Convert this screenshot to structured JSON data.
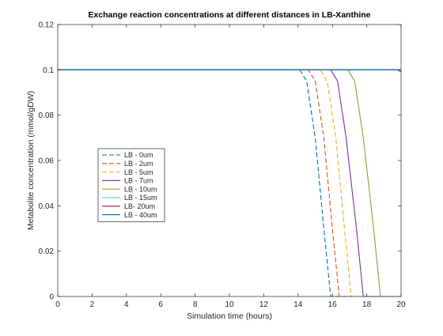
{
  "chart_data": {
    "type": "line",
    "title": "Exchange reaction concentrations at different distances in LB-Xanthine",
    "xlabel": "Simulation time (hours)",
    "ylabel": "Metabolite concentration (mmol/gDW)",
    "xlim": [
      0,
      20
    ],
    "ylim": [
      0,
      0.12
    ],
    "xticks": [
      0,
      2,
      4,
      6,
      8,
      10,
      12,
      14,
      16,
      18,
      20
    ],
    "yticks": [
      0,
      0.02,
      0.04,
      0.06,
      0.08,
      0.1,
      0.12
    ],
    "xtick_labels": [
      "0",
      "2",
      "4",
      "6",
      "8",
      "10",
      "12",
      "14",
      "16",
      "18",
      "20"
    ],
    "ytick_labels": [
      "0",
      "0.02",
      "0.04",
      "0.06",
      "0.08",
      "0.1",
      "0.12"
    ],
    "grid": false,
    "legend_position": "middle-left",
    "series": [
      {
        "name": "LB - 0um",
        "color": "#0072BD",
        "dash": "dashed",
        "x": [
          0,
          14.1,
          14.5,
          15.0,
          15.5,
          15.9,
          20
        ],
        "y": [
          0.1,
          0.1,
          0.095,
          0.07,
          0.03,
          0,
          0
        ]
      },
      {
        "name": "LB - 2um",
        "color": "#D95319",
        "dash": "dashed",
        "x": [
          0,
          14.6,
          15.0,
          15.5,
          16.0,
          16.4,
          20
        ],
        "y": [
          0.1,
          0.1,
          0.095,
          0.07,
          0.03,
          0,
          0
        ]
      },
      {
        "name": "LB - 5um",
        "color": "#EDB120",
        "dash": "dashed",
        "x": [
          0,
          15.3,
          15.7,
          16.2,
          16.7,
          17.1,
          20
        ],
        "y": [
          0.1,
          0.1,
          0.095,
          0.07,
          0.03,
          0,
          0
        ]
      },
      {
        "name": "LB - 7um",
        "color": "#7E2F8E",
        "dash": "solid",
        "x": [
          0,
          15.9,
          16.3,
          16.8,
          17.4,
          17.8,
          20
        ],
        "y": [
          0.1,
          0.1,
          0.095,
          0.07,
          0.03,
          0,
          0
        ]
      },
      {
        "name": "LB - 10um",
        "color": "#77AC30",
        "dash": "solid",
        "x": [
          0,
          16.9,
          17.3,
          17.8,
          18.4,
          18.8,
          20
        ],
        "y": [
          0.1,
          0.1,
          0.095,
          0.07,
          0.03,
          0,
          0
        ]
      },
      {
        "name": "LB - 15um",
        "color": "#4DBEEE",
        "dash": "solid",
        "x": [
          0,
          20
        ],
        "y": [
          0.1,
          0.1
        ]
      },
      {
        "name": "LB- 20um",
        "color": "#A2142F",
        "dash": "solid",
        "x": [
          0,
          20
        ],
        "y": [
          0.1,
          0.1
        ]
      },
      {
        "name": "LB - 40um",
        "color": "#0072BD",
        "dash": "solid",
        "x": [
          0,
          19.8,
          20
        ],
        "y": [
          0.1,
          0.1,
          0.099
        ]
      }
    ]
  }
}
